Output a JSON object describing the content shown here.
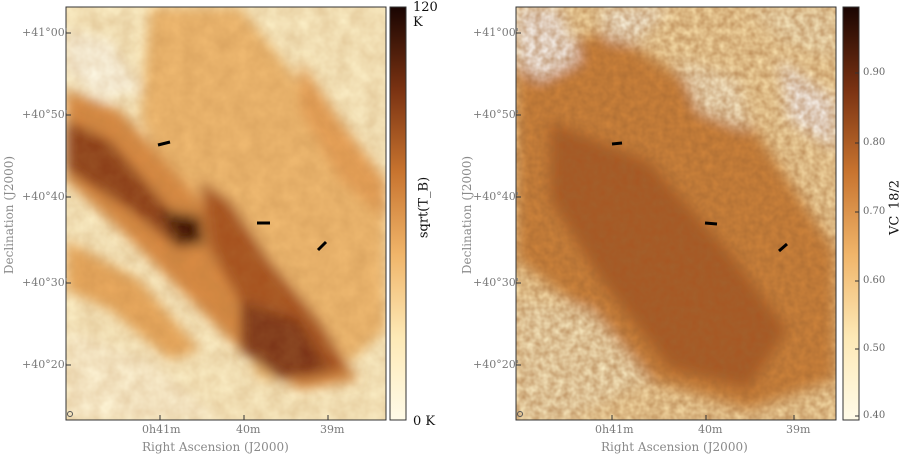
{
  "left_panel": {
    "y_ticks": [
      "+41°00'",
      "+40°50'",
      "+40°40'",
      "+40°30'",
      "+40°20'"
    ],
    "x_ticks": [
      "0h41m",
      "40m",
      "39m"
    ],
    "xlabel": "Right Ascension (J2000)",
    "ylabel": "Declination (J2000)",
    "colorbar": {
      "title": "sqrt(T_B)",
      "max_label": "120 K",
      "min_label": "0 K"
    },
    "colormap": [
      "#fffbe8",
      "#fde9b6",
      "#f5c67b",
      "#e59a4c",
      "#c0692b",
      "#8a3a16",
      "#4a160a",
      "#1a0502"
    ]
  },
  "right_panel": {
    "y_ticks": [
      "+41°00'",
      "+40°50'",
      "+40°40'",
      "+40°30'",
      "+40°20'"
    ],
    "x_ticks": [
      "0h41m",
      "40m",
      "39m"
    ],
    "xlabel": "Right Ascension (J2000)",
    "ylabel": "Declination (J2000)",
    "colorbar": {
      "title": "VC_18/2",
      "ticks": [
        "0.90",
        "0.80",
        "0.70",
        "0.60",
        "0.50",
        "0.40"
      ]
    },
    "colormap": [
      "#fffbe8",
      "#fde9b6",
      "#f5c67b",
      "#e59a4c",
      "#c0692b",
      "#8a3a16",
      "#4a160a",
      "#1a0502"
    ]
  }
}
